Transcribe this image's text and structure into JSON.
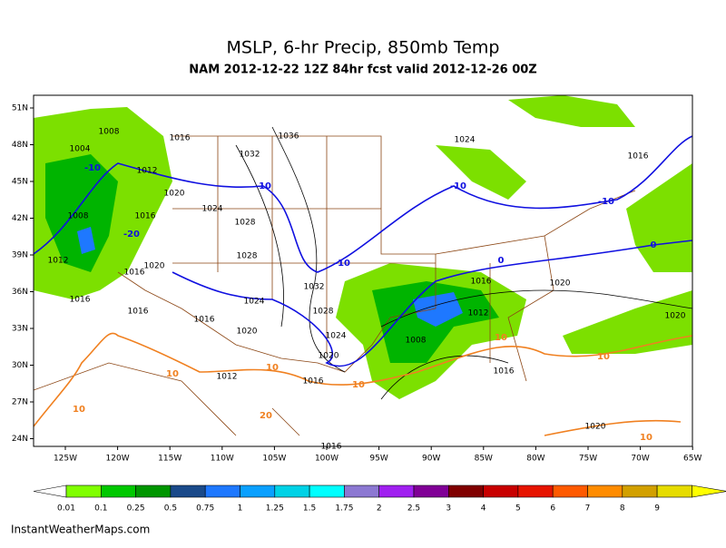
{
  "header": {
    "title": "MSLP, 6-hr Precip, 850mb Temp",
    "subtitle": "NAM 2012-12-22 12Z 84hr fcst valid 2012-12-26 00Z"
  },
  "map": {
    "lat_labels": [
      "51N",
      "48N",
      "45N",
      "42N",
      "39N",
      "36N",
      "33N",
      "30N",
      "27N",
      "24N"
    ],
    "lon_labels": [
      "125W",
      "120W",
      "115W",
      "110W",
      "105W",
      "100W",
      "95W",
      "90W",
      "85W",
      "80W",
      "75W",
      "70W",
      "65W"
    ],
    "isobar_labels": [
      "1008",
      "1004",
      "1016",
      "1012",
      "1020",
      "1036",
      "1032",
      "1024",
      "1016",
      "1008",
      "1016",
      "1024",
      "1028",
      "1012",
      "1020",
      "1016",
      "1028",
      "1016",
      "1016",
      "1016",
      "1024",
      "1020",
      "1032",
      "1028",
      "1024",
      "1020",
      "1016",
      "1020",
      "1012",
      "1008",
      "1020",
      "1016",
      "1012",
      "1016",
      "1020",
      "1016"
    ],
    "temp_labels": [
      "-10",
      "-10",
      "-10",
      "-10",
      "-10",
      "0",
      "0",
      "-20",
      "10",
      "10",
      "10",
      "10",
      "10",
      "10",
      "10",
      "20"
    ],
    "temp_colors": [
      "#1010e0",
      "#1010e0",
      "#1010e0",
      "#1010e0",
      "#1010e0",
      "#1010e0",
      "#1010e0",
      "#1010e0",
      "#f08020",
      "#f08020",
      "#f08020",
      "#f08020",
      "#f08020",
      "#f08020",
      "#f08020",
      "#f08020"
    ]
  },
  "legend": {
    "labels": [
      "0.01",
      "0.1",
      "0.25",
      "0.5",
      "0.75",
      "1",
      "1.25",
      "1.5",
      "1.75",
      "2",
      "2.5",
      "3",
      "4",
      "5",
      "6",
      "7",
      "8",
      "9"
    ],
    "colors": [
      "#80ff00",
      "#00c800",
      "#009600",
      "#1a4a8a",
      "#1e78ff",
      "#0aa0ff",
      "#00d2e6",
      "#00ffff",
      "#8c78d2",
      "#a020f0",
      "#800096",
      "#800000",
      "#c80000",
      "#e61400",
      "#ff5a00",
      "#ff8c00",
      "#d2a000",
      "#e6dc00",
      "#ffff00"
    ]
  },
  "footer": "InstantWeatherMaps.com"
}
